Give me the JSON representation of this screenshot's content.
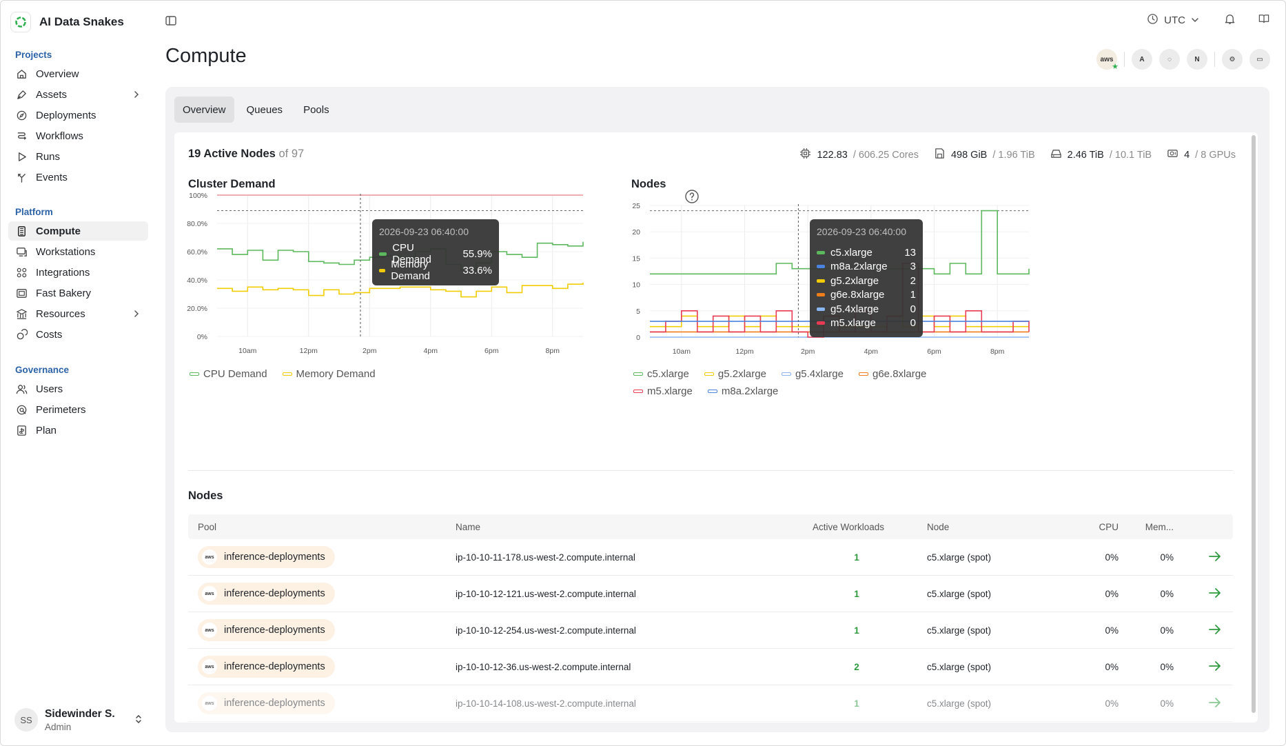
{
  "app": {
    "name": "AI Data Snakes"
  },
  "topbar": {
    "timezone": "UTC"
  },
  "sidebar": {
    "sections": [
      {
        "heading": "Projects",
        "items": [
          {
            "label": "Overview",
            "icon": "home-icon"
          },
          {
            "label": "Assets",
            "icon": "pen-tool-icon",
            "has_children": true
          },
          {
            "label": "Deployments",
            "icon": "compass-icon"
          },
          {
            "label": "Workflows",
            "icon": "workflow-icon"
          },
          {
            "label": "Runs",
            "icon": "play-icon"
          },
          {
            "label": "Events",
            "icon": "fork-icon"
          }
        ]
      },
      {
        "heading": "Platform",
        "items": [
          {
            "label": "Compute",
            "icon": "compute-icon",
            "active": true
          },
          {
            "label": "Workstations",
            "icon": "workstation-icon"
          },
          {
            "label": "Integrations",
            "icon": "integrations-icon"
          },
          {
            "label": "Fast Bakery",
            "icon": "image-icon"
          },
          {
            "label": "Resources",
            "icon": "resources-icon",
            "has_children": true
          },
          {
            "label": "Costs",
            "icon": "coins-icon"
          }
        ]
      },
      {
        "heading": "Governance",
        "items": [
          {
            "label": "Users",
            "icon": "users-icon"
          },
          {
            "label": "Perimeters",
            "icon": "perimeter-icon"
          },
          {
            "label": "Plan",
            "icon": "plan-icon"
          }
        ]
      }
    ],
    "user": {
      "initials": "SS",
      "name": "Sidewinder S.",
      "role": "Admin"
    }
  },
  "page": {
    "title": "Compute"
  },
  "providers": [
    {
      "label": "aws",
      "icon": "aws-icon"
    },
    {
      "label": "A",
      "icon": "anyscale-icon"
    },
    {
      "label": "◌",
      "icon": "coreweave-icon"
    },
    {
      "label": "N",
      "icon": "nebius-icon"
    },
    {
      "label": "⚙",
      "icon": "provider-gear-icon"
    },
    {
      "label": "▭",
      "icon": "provider-card-icon"
    }
  ],
  "tabs": [
    "Overview",
    "Queues",
    "Pools"
  ],
  "summary": {
    "active": "19 Active Nodes",
    "total": "of 97"
  },
  "stats": [
    {
      "icon": "cpu-icon",
      "value": "122.83",
      "total": "/ 606.25 Cores"
    },
    {
      "icon": "memory-icon",
      "value": "498 GiB",
      "total": "/ 1.96 TiB"
    },
    {
      "icon": "disk-icon",
      "value": "2.46 TiB",
      "total": "/ 10.1 TiB"
    },
    {
      "icon": "gpu-icon",
      "value": "4",
      "total": "/ 8 GPUs"
    }
  ],
  "colors": {
    "green": "#5cb85c",
    "yellow": "#f1cc00",
    "light_blue": "#8ab6f2",
    "orange": "#ef7d1a",
    "red": "#e83a52",
    "blue": "#4a82e0",
    "limit_red": "#e57b82"
  },
  "chart_data": [
    {
      "type": "line",
      "title": "Cluster Demand",
      "x_ticks": [
        "10am",
        "12pm",
        "2pm",
        "4pm",
        "6pm",
        "8pm"
      ],
      "y_ticks": [
        "0%",
        "20.0%",
        "40.0%",
        "60.0%",
        "80.0%",
        "100%"
      ],
      "ylim": [
        0,
        100
      ],
      "grid": true,
      "legend": "bottom-left",
      "x_hours": [
        9.0,
        9.5,
        10.0,
        10.5,
        11.0,
        11.5,
        12.0,
        12.5,
        13.0,
        13.5,
        14.0,
        14.5,
        15.0,
        15.5,
        16.0,
        16.5,
        17.0,
        17.5,
        18.0,
        18.5,
        19.0,
        19.5,
        20.0,
        20.5,
        21.0
      ],
      "series": [
        {
          "name": "CPU Demand",
          "color": "#5cb85c",
          "values": [
            62,
            58,
            61,
            54,
            61,
            60,
            53,
            52,
            51,
            54,
            56,
            57,
            56,
            60,
            62,
            51,
            47,
            52,
            60,
            58,
            56,
            66,
            65,
            64,
            67
          ]
        },
        {
          "name": "Memory Demand",
          "color": "#f1cc00",
          "values": [
            34,
            32,
            35,
            33,
            34,
            33,
            29,
            33,
            30,
            31,
            34,
            34,
            35,
            35,
            33,
            32,
            28,
            32,
            35,
            31,
            36,
            36,
            34,
            37,
            38
          ]
        }
      ],
      "limit_line": 100,
      "threshold_line": 89,
      "tooltip": {
        "time": "2026-09-23 06:40:00",
        "x_hour": 13.7,
        "rows": [
          {
            "name": "CPU Demand",
            "value": "55.9%"
          },
          {
            "name": "Memory Demand",
            "value": "33.6%"
          }
        ]
      }
    },
    {
      "type": "line",
      "title": "Nodes",
      "x_ticks": [
        "10am",
        "12pm",
        "2pm",
        "4pm",
        "6pm",
        "8pm"
      ],
      "y_ticks": [
        "0",
        "5",
        "10",
        "15",
        "20",
        "25"
      ],
      "ylim": [
        0,
        25
      ],
      "grid": true,
      "legend": "bottom-left",
      "x_hours": [
        9.0,
        9.5,
        10.0,
        10.5,
        11.0,
        11.5,
        12.0,
        12.5,
        13.0,
        13.5,
        14.0,
        14.5,
        15.0,
        15.5,
        16.0,
        16.5,
        17.0,
        17.5,
        18.0,
        18.5,
        19.0,
        19.5,
        20.0,
        20.5,
        21.0
      ],
      "series": [
        {
          "name": "c5.xlarge",
          "color": "#5cb85c",
          "values": [
            12,
            12,
            12,
            12,
            12,
            12,
            12,
            12,
            14,
            13,
            13,
            13,
            13,
            13,
            13,
            13,
            13,
            13,
            12,
            14,
            12,
            24,
            12,
            12,
            13
          ]
        },
        {
          "name": "g5.2xlarge",
          "color": "#f1cc00",
          "values": [
            2,
            2,
            4,
            2,
            2,
            4,
            2,
            4,
            2,
            2,
            2,
            4,
            2,
            2,
            2,
            4,
            2,
            4,
            2,
            4,
            2,
            2,
            2,
            2,
            2
          ]
        },
        {
          "name": "g5.4xlarge",
          "color": "#8ab6f2",
          "values": [
            0,
            0,
            0,
            0,
            0,
            0,
            0,
            0,
            0,
            0,
            0,
            0,
            0,
            0,
            0,
            0,
            0,
            0,
            0,
            0,
            0,
            0,
            0,
            0,
            0
          ]
        },
        {
          "name": "g6e.8xlarge",
          "color": "#ef7d1a",
          "values": [
            1,
            1,
            1,
            1,
            1,
            1,
            1,
            1,
            1,
            1,
            1,
            1,
            1,
            1,
            1,
            1,
            1,
            1,
            1,
            1,
            1,
            1,
            1,
            1,
            1
          ]
        },
        {
          "name": "m5.xlarge",
          "color": "#e83a52",
          "values": [
            1,
            3,
            5,
            1,
            4,
            1,
            4,
            1,
            5,
            1,
            0,
            4,
            1,
            5,
            1,
            4,
            14,
            1,
            4,
            1,
            5,
            1,
            1,
            3,
            1
          ]
        },
        {
          "name": "m8a.2xlarge",
          "color": "#4a82e0",
          "values": [
            3,
            3,
            3,
            3,
            3,
            3,
            3,
            3,
            3,
            3,
            3,
            3,
            3,
            3,
            3,
            3,
            3,
            3,
            3,
            3,
            3,
            3,
            3,
            3,
            3
          ]
        }
      ],
      "threshold_line": 24,
      "tooltip": {
        "time": "2026-09-23 06:40:00",
        "x_hour": 13.7,
        "rows": [
          {
            "name": "c5.xlarge",
            "value": "13",
            "color": "#5cb85c"
          },
          {
            "name": "m8a.2xlarge",
            "value": "3",
            "color": "#4a82e0"
          },
          {
            "name": "g5.2xlarge",
            "value": "2",
            "color": "#f1cc00"
          },
          {
            "name": "g6e.8xlarge",
            "value": "1",
            "color": "#ef7d1a"
          },
          {
            "name": "g5.4xlarge",
            "value": "0",
            "color": "#8ab6f2"
          },
          {
            "name": "m5.xlarge",
            "value": "0",
            "color": "#e83a52"
          }
        ]
      }
    }
  ],
  "nodes_table": {
    "title": "Nodes",
    "columns": [
      "Pool",
      "Name",
      "Active Workloads",
      "Node",
      "CPU",
      "Mem..."
    ],
    "rows": [
      {
        "pool": "inference-deployments",
        "name": "ip-10-10-11-178.us-west-2.compute.internal",
        "workloads": "1",
        "node": "c5.xlarge (spot)",
        "cpu": "0%",
        "mem": "0%"
      },
      {
        "pool": "inference-deployments",
        "name": "ip-10-10-12-121.us-west-2.compute.internal",
        "workloads": "1",
        "node": "c5.xlarge (spot)",
        "cpu": "0%",
        "mem": "0%"
      },
      {
        "pool": "inference-deployments",
        "name": "ip-10-10-12-254.us-west-2.compute.internal",
        "workloads": "1",
        "node": "c5.xlarge (spot)",
        "cpu": "0%",
        "mem": "0%"
      },
      {
        "pool": "inference-deployments",
        "name": "ip-10-10-12-36.us-west-2.compute.internal",
        "workloads": "2",
        "node": "c5.xlarge (spot)",
        "cpu": "0%",
        "mem": "0%"
      },
      {
        "pool": "inference-deployments",
        "name": "ip-10-10-14-108.us-west-2.compute.internal",
        "workloads": "1",
        "node": "c5.xlarge (spot)",
        "cpu": "0%",
        "mem": "0%"
      }
    ]
  }
}
